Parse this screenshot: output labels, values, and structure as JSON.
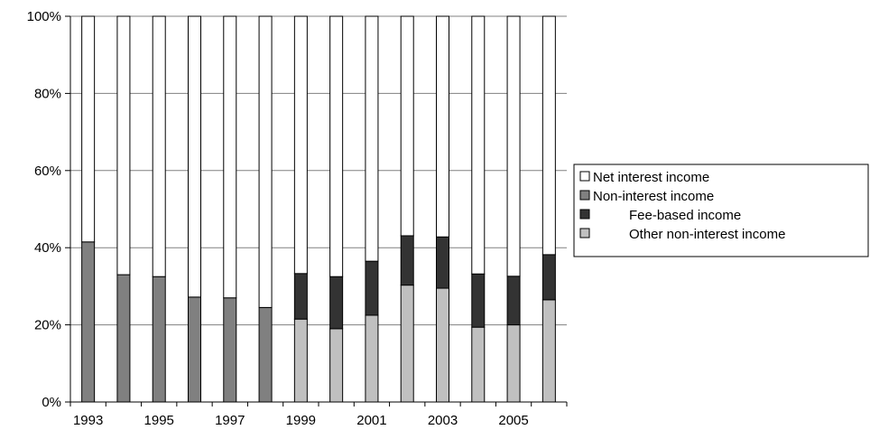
{
  "chart_data": {
    "type": "bar",
    "stacked": true,
    "normalized_percent": true,
    "title": "",
    "xlabel": "",
    "ylabel": "",
    "ylim": [
      0,
      100
    ],
    "y_ticks": [
      "0%",
      "20%",
      "40%",
      "60%",
      "80%",
      "100%"
    ],
    "y_tick_values": [
      0,
      20,
      40,
      60,
      80,
      100
    ],
    "grid": true,
    "legend_position": "right",
    "categories": [
      "1993",
      "1994",
      "1995",
      "1996",
      "1997",
      "1998",
      "1999",
      "2000",
      "2001",
      "2002",
      "2003",
      "2004",
      "2005",
      "2006"
    ],
    "x_tick_labels": [
      "1993",
      "",
      "1995",
      "",
      "1997",
      "",
      "1999",
      "",
      "2001",
      "",
      "2003",
      "",
      "2005",
      ""
    ],
    "series": [
      {
        "name": "Other non-interest income",
        "color": "#c0c0c0",
        "values": [
          0,
          0,
          0,
          0,
          0,
          0,
          21.5,
          19,
          22.5,
          30.3,
          29.5,
          19.4,
          20,
          26.5
        ]
      },
      {
        "name": "Fee-based income",
        "color": "#333333",
        "values": [
          0,
          0,
          0,
          0,
          0,
          0,
          11.8,
          13.5,
          14,
          12.8,
          13.3,
          13.8,
          12.6,
          11.7
        ]
      },
      {
        "name": "Non-interest income",
        "color": "#808080",
        "values": [
          41.5,
          33,
          32.5,
          27.2,
          27,
          24.5,
          0,
          0,
          0,
          0,
          0,
          0,
          0,
          0
        ]
      },
      {
        "name": "Net interest income",
        "color": "#ffffff",
        "values": [
          58.5,
          67,
          67.5,
          72.8,
          73,
          75.5,
          66.7,
          67.5,
          63.5,
          56.9,
          57.2,
          66.8,
          67.4,
          61.8
        ]
      }
    ],
    "legend": [
      {
        "label": "Net interest income",
        "color": "#ffffff",
        "indent": false
      },
      {
        "label": "Non-interest income",
        "color": "#808080",
        "indent": false
      },
      {
        "label": "Fee-based income",
        "color": "#333333",
        "indent": true
      },
      {
        "label": "Other non-interest income",
        "color": "#c0c0c0",
        "indent": true
      }
    ]
  }
}
